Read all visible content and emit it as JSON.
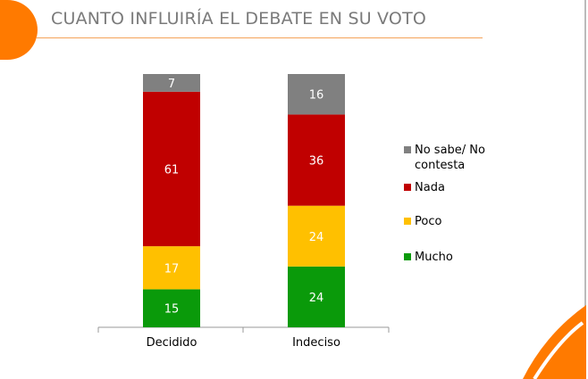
{
  "chart_data": {
    "type": "bar",
    "stacked": true,
    "title": "CUANTO INFLUIRÍA EL DEBATE EN SU VOTO",
    "categories": [
      "Decidido",
      "Indeciso"
    ],
    "series": [
      {
        "name": "Mucho",
        "color": "#0a9a0a",
        "values": [
          15,
          24
        ]
      },
      {
        "name": "Poco",
        "color": "#ffc000",
        "values": [
          17,
          24
        ]
      },
      {
        "name": "Nada",
        "color": "#c00000",
        "values": [
          61,
          36
        ]
      },
      {
        "name": "No sabe/ No contesta",
        "color": "#808080",
        "values": [
          7,
          16
        ]
      }
    ],
    "ylim": [
      0,
      100
    ],
    "legend": "right",
    "grid": false
  }
}
